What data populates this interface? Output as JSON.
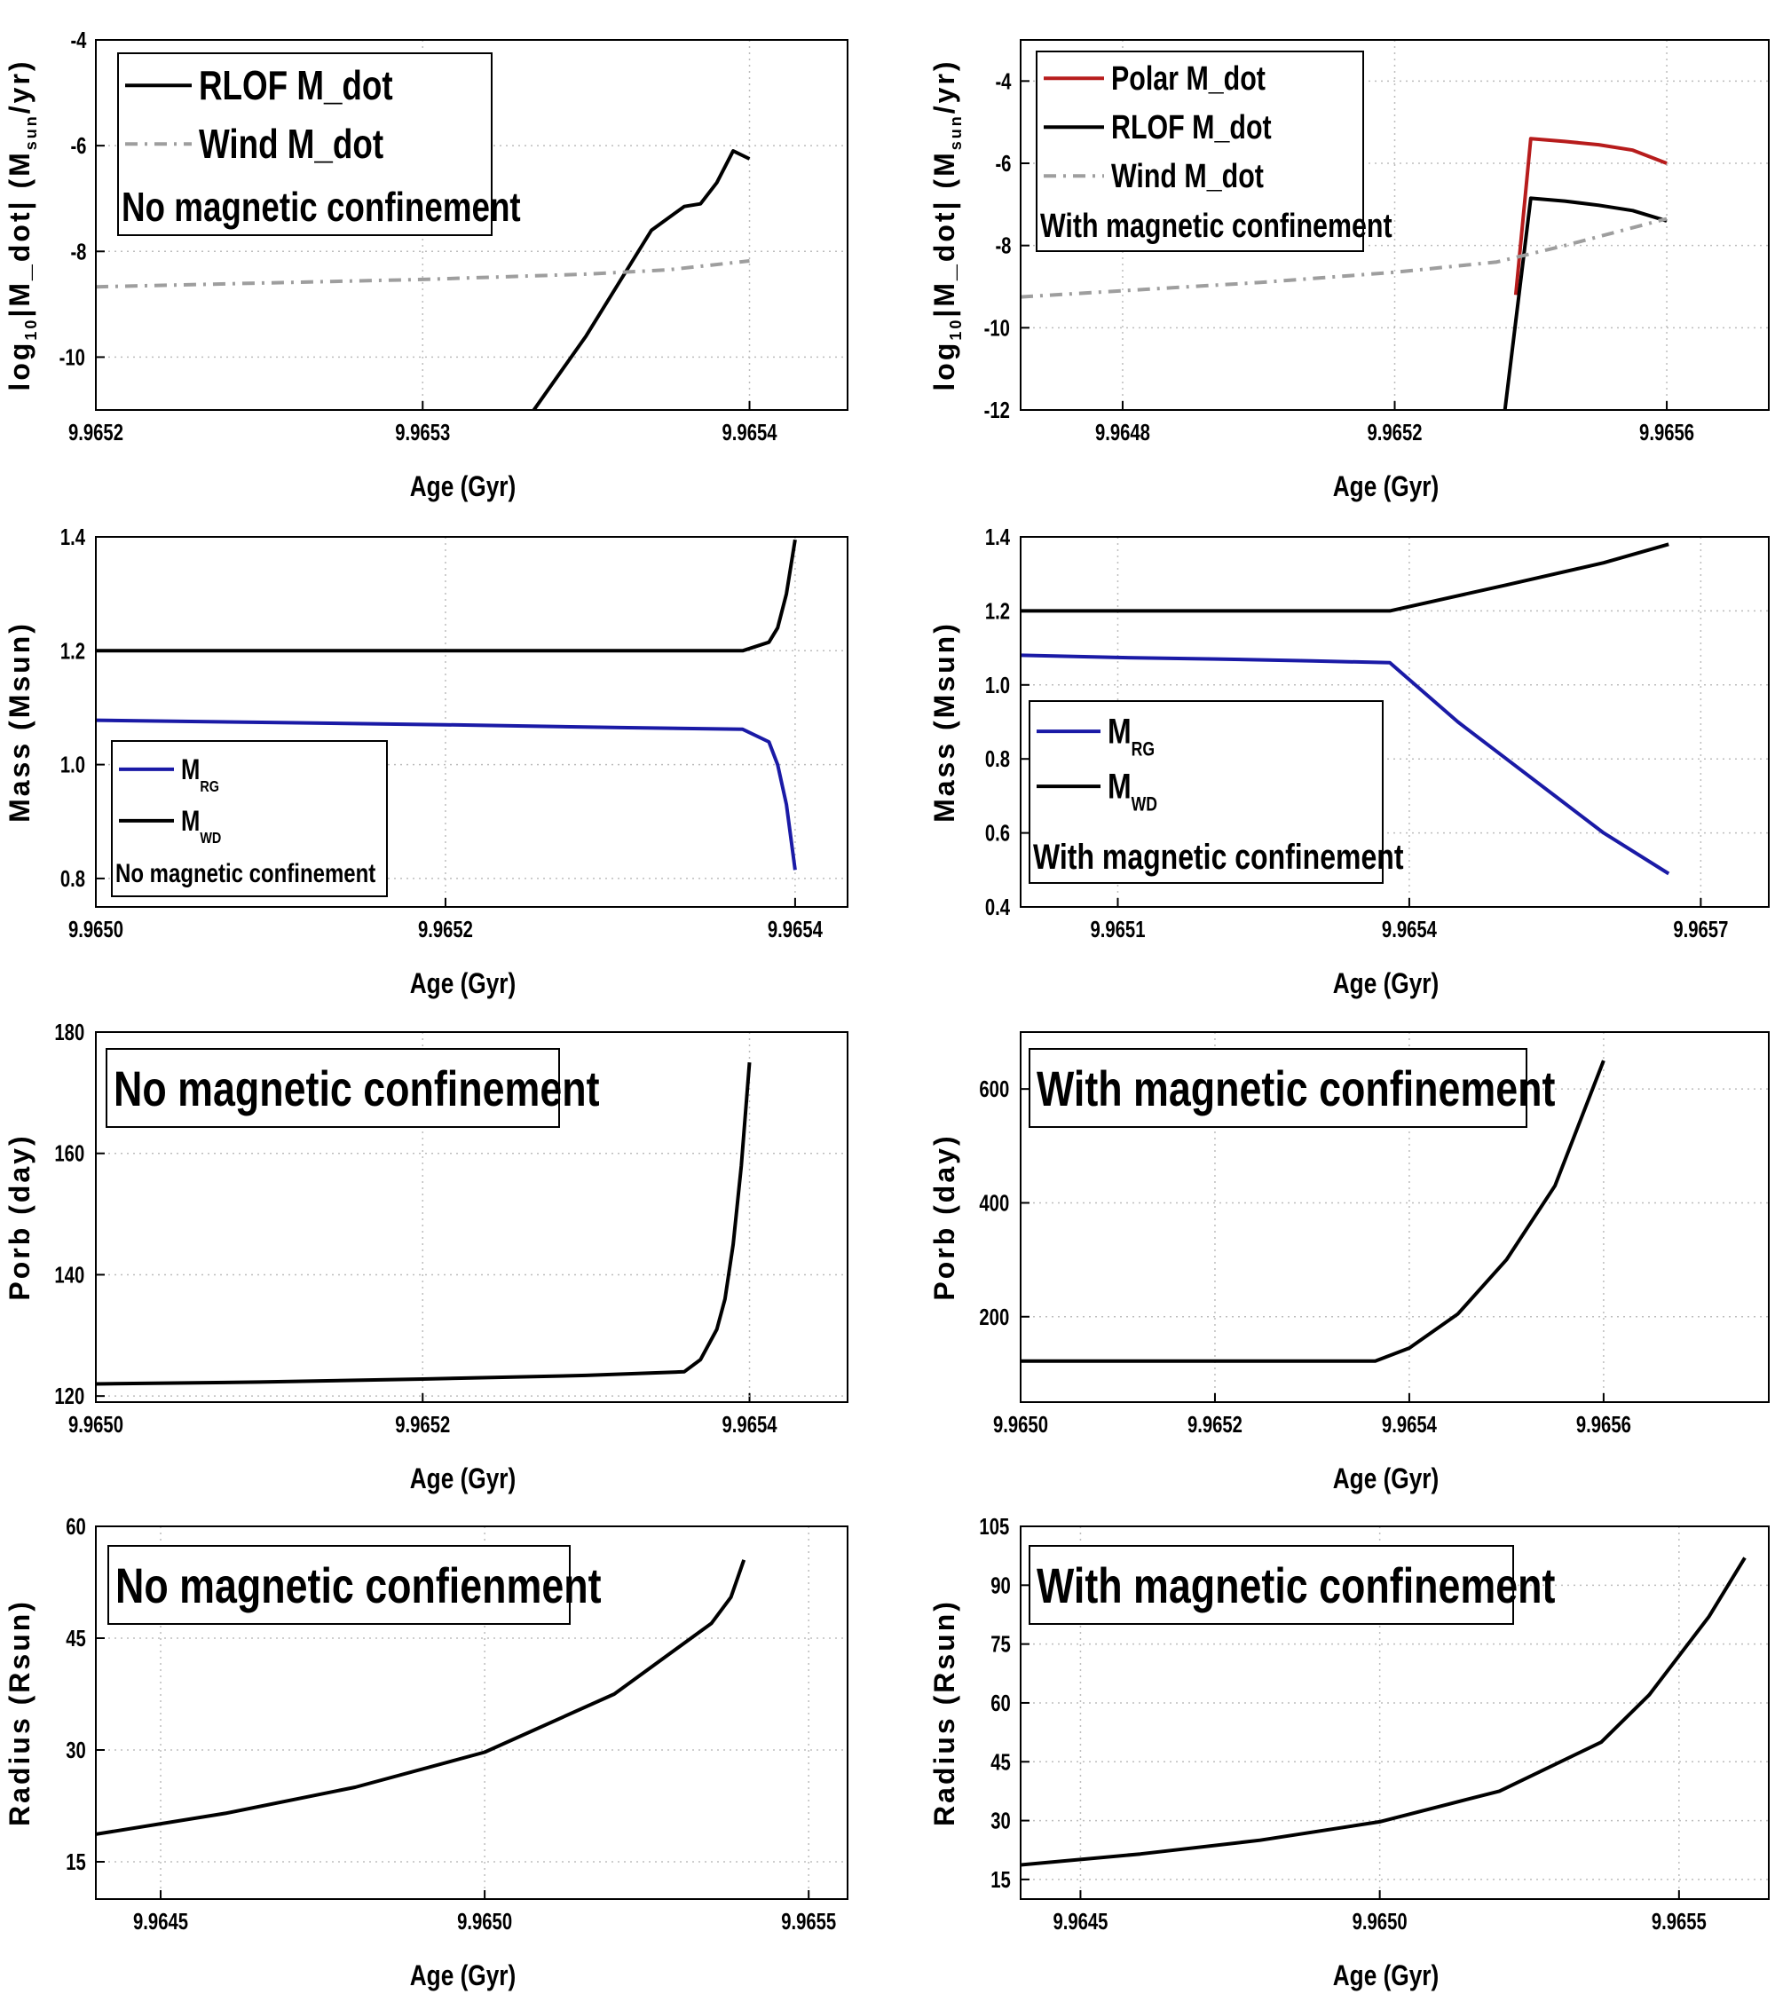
{
  "chart_data": [
    {
      "type": "line",
      "ylabel_main": "log",
      "ylabel_sub": "10",
      "ylabel_rest": "|M_dot| (M",
      "ylabel_unit_sub": "sun",
      "ylabel_tail": "/yr)",
      "xlabel": "Age (Gyr)",
      "xlim": [
        9.9652,
        9.96543
      ],
      "ylim": [
        -11,
        -4
      ],
      "xticks": [
        9.9652,
        9.9653,
        9.9654
      ],
      "xtick_labels": [
        "9.9652",
        "9.9653",
        "9.9654"
      ],
      "yticks": [
        -4,
        -6,
        -8,
        -10
      ],
      "ytick_labels": [
        "-4",
        "-6",
        "-8",
        "-10"
      ],
      "legend": {
        "entries": [
          {
            "label": "RLOF M_dot",
            "color": "#000000",
            "style": "solid"
          },
          {
            "label": "Wind M_dot",
            "color": "#9e9e9e",
            "style": "dashdot"
          }
        ],
        "note": "No magnetic confinement",
        "placement": "top-left"
      },
      "series": [
        {
          "name": "RLOF M_dot",
          "color": "#000000",
          "style": "solid",
          "x": [
            9.965334,
            9.96535,
            9.96536,
            9.96537,
            9.96538,
            9.965385,
            9.96539,
            9.965395,
            9.9654
          ],
          "y": [
            -11,
            -9.6,
            -8.6,
            -7.6,
            -7.15,
            -7.1,
            -6.7,
            -6.1,
            -6.25
          ]
        },
        {
          "name": "Wind M_dot",
          "color": "#9e9e9e",
          "style": "dashdot",
          "x": [
            9.9652,
            9.96525,
            9.9653,
            9.96535,
            9.965375,
            9.9654
          ],
          "y": [
            -8.67,
            -8.6,
            -8.53,
            -8.43,
            -8.35,
            -8.18
          ]
        }
      ]
    },
    {
      "type": "line",
      "ylabel_main": "log",
      "ylabel_sub": "10",
      "ylabel_rest": "|M_dot| (M",
      "ylabel_unit_sub": "sun",
      "ylabel_tail": "/yr)",
      "xlabel": "Age (Gyr)",
      "xlim": [
        9.96465,
        9.96575
      ],
      "ylim": [
        -12,
        -3
      ],
      "xticks": [
        9.9648,
        9.9652,
        9.9656
      ],
      "xtick_labels": [
        "9.9648",
        "9.9652",
        "9.9656"
      ],
      "yticks": [
        -4,
        -6,
        -8,
        -10,
        -12
      ],
      "ytick_labels": [
        "-4",
        "-6",
        "-8",
        "-10",
        "-12"
      ],
      "legend": {
        "entries": [
          {
            "label": "Polar M_dot",
            "color": "#b71c1c",
            "style": "solid"
          },
          {
            "label": "RLOF M_dot",
            "color": "#000000",
            "style": "solid"
          },
          {
            "label": "Wind M_dot",
            "color": "#9e9e9e",
            "style": "dashdot"
          }
        ],
        "note": "With magnetic confinement",
        "placement": "top-left"
      },
      "series": [
        {
          "name": "Polar M_dot",
          "color": "#b71c1c",
          "style": "solid",
          "x": [
            9.965378,
            9.9654,
            9.96545,
            9.9655,
            9.96555,
            9.9656
          ],
          "y": [
            -9.2,
            -5.4,
            -5.47,
            -5.55,
            -5.68,
            -6.0
          ]
        },
        {
          "name": "RLOF M_dot",
          "color": "#000000",
          "style": "solid",
          "x": [
            9.965362,
            9.9654,
            9.96545,
            9.9655,
            9.96555,
            9.9656
          ],
          "y": [
            -12,
            -6.85,
            -6.92,
            -7.02,
            -7.15,
            -7.4
          ]
        },
        {
          "name": "Wind M_dot",
          "color": "#9e9e9e",
          "style": "dashdot",
          "x": [
            9.96465,
            9.9648,
            9.965,
            9.9652,
            9.96535,
            9.96545,
            9.9656
          ],
          "y": [
            -9.25,
            -9.1,
            -8.9,
            -8.65,
            -8.4,
            -8.0,
            -7.35
          ]
        }
      ]
    },
    {
      "type": "line",
      "ylabel_main": "Mass (Msun)",
      "xlabel": "Age (Gyr)",
      "xlim": [
        9.965,
        9.96543
      ],
      "ylim": [
        0.75,
        1.4
      ],
      "xticks": [
        9.965,
        9.9652,
        9.9654
      ],
      "xtick_labels": [
        "9.9650",
        "9.9652",
        "9.9654"
      ],
      "yticks": [
        0.8,
        1.0,
        1.2,
        1.4
      ],
      "ytick_labels": [
        "0.8",
        "1.0",
        "1.2",
        "1.4"
      ],
      "legend": {
        "entries": [
          {
            "label": "M",
            "sub": "RG",
            "color": "#1a1aa6",
            "style": "solid"
          },
          {
            "label": "M",
            "sub": "WD",
            "color": "#000000",
            "style": "solid"
          }
        ],
        "note": "No magnetic confinement",
        "placement": "bottom-left"
      },
      "series": [
        {
          "name": "M_RG",
          "color": "#1a1aa6",
          "style": "solid",
          "x": [
            9.965,
            9.9651,
            9.9652,
            9.9653,
            9.96537,
            9.965385,
            9.96539,
            9.965395,
            9.9654
          ],
          "y": [
            1.078,
            1.074,
            1.07,
            1.065,
            1.062,
            1.04,
            1.0,
            0.93,
            0.815
          ]
        },
        {
          "name": "M_WD",
          "color": "#000000",
          "style": "solid",
          "x": [
            9.965,
            9.9652,
            9.96537,
            9.965385,
            9.96539,
            9.965395,
            9.9654
          ],
          "y": [
            1.2,
            1.2,
            1.2,
            1.215,
            1.24,
            1.3,
            1.395
          ]
        }
      ]
    },
    {
      "type": "line",
      "ylabel_main": "Mass (Msun)",
      "xlabel": "Age (Gyr)",
      "xlim": [
        9.965,
        9.96577
      ],
      "ylim": [
        0.4,
        1.4
      ],
      "xticks": [
        9.9651,
        9.9654,
        9.9657
      ],
      "xtick_labels": [
        "9.9651",
        "9.9654",
        "9.9657"
      ],
      "yticks": [
        0.4,
        0.6,
        0.8,
        1.0,
        1.2,
        1.4
      ],
      "ytick_labels": [
        "0.4",
        "0.6",
        "0.8",
        "1.0",
        "1.2",
        "1.4"
      ],
      "legend": {
        "entries": [
          {
            "label": "M",
            "sub": "RG",
            "color": "#1a1aa6",
            "style": "solid"
          },
          {
            "label": "M",
            "sub": "WD",
            "color": "#000000",
            "style": "solid"
          }
        ],
        "note": "With magnetic confinement",
        "placement": "bottom-left"
      },
      "series": [
        {
          "name": "M_RG",
          "color": "#1a1aa6",
          "style": "solid",
          "x": [
            9.965,
            9.9651,
            9.9652,
            9.9653,
            9.96538,
            9.96545,
            9.9655,
            9.96555,
            9.9656,
            9.965667
          ],
          "y": [
            1.08,
            1.074,
            1.07,
            1.065,
            1.06,
            0.9,
            0.8,
            0.7,
            0.6,
            0.49
          ]
        },
        {
          "name": "M_WD",
          "color": "#000000",
          "style": "solid",
          "x": [
            9.965,
            9.9653,
            9.96538,
            9.9655,
            9.9656,
            9.965667
          ],
          "y": [
            1.2,
            1.2,
            1.2,
            1.27,
            1.33,
            1.38
          ]
        }
      ]
    },
    {
      "type": "line",
      "ylabel_main": "Porb (day)",
      "xlabel": "Age (Gyr)",
      "xlim": [
        9.965,
        9.96546
      ],
      "ylim": [
        119,
        180
      ],
      "xticks": [
        9.965,
        9.9652,
        9.9654
      ],
      "xtick_labels": [
        "9.9650",
        "9.9652",
        "9.9654"
      ],
      "yticks": [
        120,
        140,
        160,
        180
      ],
      "ytick_labels": [
        "120",
        "140",
        "160",
        "180"
      ],
      "legend": {
        "entries": [],
        "note": "No magnetic confinement",
        "placement": "top-left"
      },
      "series": [
        {
          "name": "Porb",
          "color": "#000000",
          "style": "solid",
          "x": [
            9.965,
            9.9651,
            9.9652,
            9.9653,
            9.96536,
            9.96537,
            9.96538,
            9.965385,
            9.96539,
            9.965395,
            9.9654
          ],
          "y": [
            122,
            122.3,
            122.8,
            123.4,
            124,
            126,
            131,
            136,
            145,
            158,
            175
          ]
        }
      ]
    },
    {
      "type": "line",
      "ylabel_main": "Porb (day)",
      "xlabel": "Age (Gyr)",
      "xlim": [
        9.965,
        9.96577
      ],
      "ylim": [
        50,
        700
      ],
      "xticks": [
        9.965,
        9.9652,
        9.9654,
        9.9656
      ],
      "xtick_labels": [
        "9.9650",
        "9.9652",
        "9.9654",
        "9.9656"
      ],
      "yticks": [
        200,
        400,
        600
      ],
      "ytick_labels": [
        "200",
        "400",
        "600"
      ],
      "legend": {
        "entries": [],
        "note": "With magnetic confinement",
        "placement": "top-left"
      },
      "series": [
        {
          "name": "Porb",
          "color": "#000000",
          "style": "solid",
          "x": [
            9.965,
            9.9652,
            9.965365,
            9.9654,
            9.96545,
            9.9655,
            9.96555,
            9.9656
          ],
          "y": [
            122,
            122,
            122,
            145,
            205,
            300,
            430,
            650
          ]
        }
      ]
    },
    {
      "type": "line",
      "ylabel_main": "Radius (Rsun)",
      "xlabel": "Age (Gyr)",
      "xlim": [
        9.9644,
        9.96556
      ],
      "ylim": [
        10,
        60
      ],
      "xticks": [
        9.9645,
        9.965,
        9.9655
      ],
      "xtick_labels": [
        "9.9645",
        "9.9650",
        "9.9655"
      ],
      "yticks": [
        15,
        30,
        45,
        60
      ],
      "ytick_labels": [
        "15",
        "30",
        "45",
        "60"
      ],
      "legend": {
        "entries": [],
        "note": "No magnetic confienment",
        "placement": "top-left"
      },
      "series": [
        {
          "name": "Radius",
          "color": "#000000",
          "style": "solid",
          "x": [
            9.9644,
            9.9646,
            9.9648,
            9.965,
            9.9652,
            9.96535,
            9.96538,
            9.9654
          ],
          "y": [
            18.7,
            21.5,
            25.0,
            29.7,
            37.5,
            47.0,
            50.5,
            55.5
          ]
        }
      ]
    },
    {
      "type": "line",
      "ylabel_main": "Radius (Rsun)",
      "xlabel": "Age (Gyr)",
      "xlim": [
        9.9644,
        9.96565
      ],
      "ylim": [
        10,
        105
      ],
      "xticks": [
        9.9645,
        9.965,
        9.9655
      ],
      "xtick_labels": [
        "9.9645",
        "9.9650",
        "9.9655"
      ],
      "yticks": [
        15,
        30,
        45,
        60,
        75,
        90,
        105
      ],
      "ytick_labels": [
        "15",
        "30",
        "45",
        "60",
        "75",
        "90",
        "105"
      ],
      "legend": {
        "entries": [],
        "note": "With magnetic confinement",
        "placement": "top-left"
      },
      "series": [
        {
          "name": "Radius",
          "color": "#000000",
          "style": "solid",
          "x": [
            9.9644,
            9.9646,
            9.9648,
            9.965,
            9.9652,
            9.96537,
            9.96545,
            9.96555,
            9.96561
          ],
          "y": [
            18.7,
            21.5,
            25.0,
            29.7,
            37.5,
            50.0,
            62.0,
            82.0,
            97.0
          ]
        }
      ]
    }
  ]
}
